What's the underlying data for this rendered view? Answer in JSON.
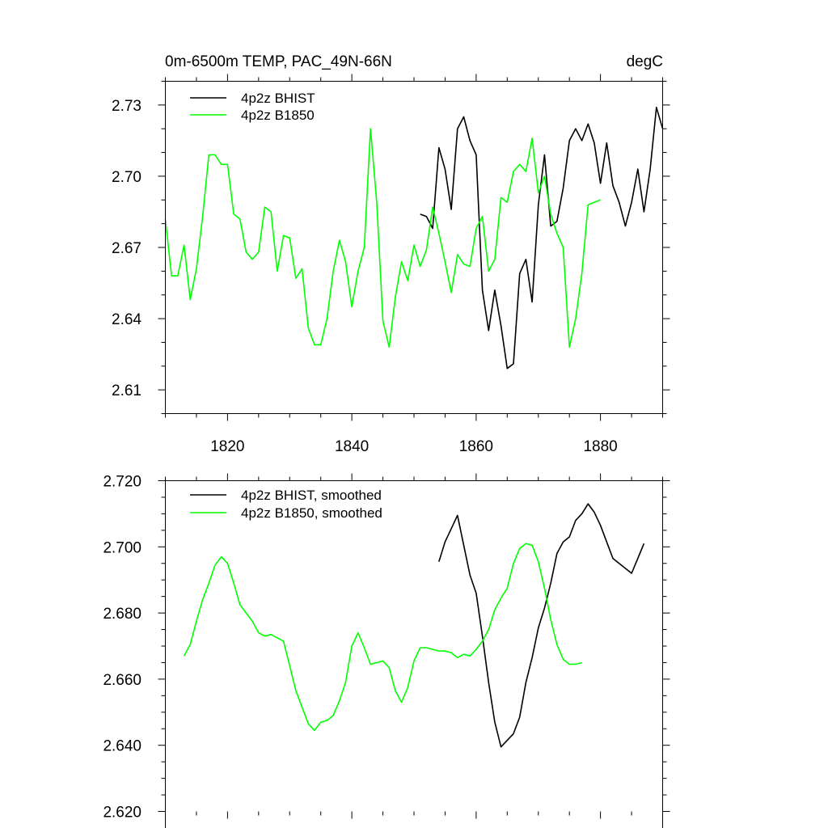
{
  "chart_data": [
    {
      "type": "line",
      "title": "0m-6500m TEMP, PAC_49N-66N",
      "units": "degC",
      "xlim": [
        1810,
        1890
      ],
      "ylim": [
        2.6,
        2.74
      ],
      "x_ticks": [
        1820,
        1840,
        1860,
        1880
      ],
      "x_tick_labels": [
        "1820",
        "1840",
        "1860",
        "1880"
      ],
      "y_ticks": [
        2.61,
        2.64,
        2.67,
        2.7,
        2.73
      ],
      "y_tick_labels": [
        "2.61",
        "2.64",
        "2.67",
        "2.70",
        "2.73"
      ],
      "legend_position": "top-left",
      "series": [
        {
          "name": "4p2z BHIST",
          "color": "#000000",
          "x": [
            1851,
            1852,
            1853,
            1854,
            1855,
            1856,
            1857,
            1858,
            1859,
            1860,
            1861,
            1862,
            1863,
            1864,
            1865,
            1866,
            1867,
            1868,
            1869,
            1870,
            1871,
            1872,
            1873,
            1874,
            1875,
            1876,
            1877,
            1878,
            1879,
            1880,
            1881,
            1882,
            1883,
            1884,
            1885,
            1886,
            1887,
            1888,
            1889,
            1890
          ],
          "y": [
            2.684,
            2.683,
            2.678,
            2.712,
            2.703,
            2.686,
            2.72,
            2.725,
            2.715,
            2.709,
            2.652,
            2.635,
            2.652,
            2.637,
            2.619,
            2.621,
            2.659,
            2.665,
            2.647,
            2.688,
            2.709,
            2.679,
            2.681,
            2.695,
            2.715,
            2.72,
            2.715,
            2.722,
            2.714,
            2.697,
            2.714,
            2.696,
            2.689,
            2.679,
            2.689,
            2.703,
            2.685,
            2.703,
            2.729,
            2.72
          ]
        },
        {
          "name": "4p2z B1850",
          "color": "#00ff00",
          "x": [
            1810,
            1811,
            1812,
            1813,
            1814,
            1815,
            1816,
            1817,
            1818,
            1819,
            1820,
            1821,
            1822,
            1823,
            1824,
            1825,
            1826,
            1827,
            1828,
            1829,
            1830,
            1831,
            1832,
            1833,
            1834,
            1835,
            1836,
            1837,
            1838,
            1839,
            1840,
            1841,
            1842,
            1843,
            1844,
            1845,
            1846,
            1847,
            1848,
            1849,
            1850,
            1851,
            1852,
            1853,
            1854,
            1855,
            1856,
            1857,
            1858,
            1859,
            1860,
            1861,
            1862,
            1863,
            1864,
            1865,
            1866,
            1867,
            1868,
            1869,
            1870,
            1871,
            1872,
            1873,
            1874,
            1875,
            1876,
            1877,
            1878,
            1879,
            1880
          ],
          "y": [
            2.682,
            2.658,
            2.658,
            2.671,
            2.648,
            2.661,
            2.683,
            2.709,
            2.709,
            2.705,
            2.705,
            2.684,
            2.682,
            2.668,
            2.665,
            2.668,
            2.687,
            2.685,
            2.66,
            2.675,
            2.674,
            2.657,
            2.661,
            2.636,
            2.629,
            2.629,
            2.64,
            2.66,
            2.673,
            2.664,
            2.645,
            2.66,
            2.67,
            2.72,
            2.689,
            2.639,
            2.628,
            2.649,
            2.664,
            2.656,
            2.671,
            2.662,
            2.669,
            2.687,
            2.676,
            2.664,
            2.651,
            2.667,
            2.663,
            2.662,
            2.678,
            2.683,
            2.66,
            2.665,
            2.691,
            2.689,
            2.702,
            2.705,
            2.702,
            2.716,
            2.693,
            2.7,
            2.684,
            2.676,
            2.67,
            2.628,
            2.64,
            2.659,
            2.688,
            2.689,
            2.69
          ]
        }
      ]
    },
    {
      "type": "line",
      "title": "",
      "xlim": [
        1810,
        1890
      ],
      "ylim": [
        2.62,
        2.72
      ],
      "x_ticks": [
        1820,
        1840,
        1860,
        1880
      ],
      "x_tick_labels": [],
      "y_ticks": [
        2.62,
        2.64,
        2.66,
        2.68,
        2.7,
        2.72
      ],
      "y_tick_labels": [
        "2.620",
        "2.640",
        "2.660",
        "2.680",
        "2.700",
        "2.720"
      ],
      "legend_position": "top-left",
      "series": [
        {
          "name": "4p2z BHIST, smoothed",
          "color": "#000000",
          "x": [
            1854,
            1855,
            1856,
            1857,
            1858,
            1859,
            1860,
            1861,
            1862,
            1863,
            1864,
            1865,
            1866,
            1867,
            1868,
            1869,
            1870,
            1871,
            1872,
            1873,
            1874,
            1875,
            1876,
            1877,
            1878,
            1879,
            1880,
            1881,
            1882,
            1883,
            1884,
            1885,
            1886,
            1887
          ],
          "y": [
            2.6955,
            2.7015,
            2.7055,
            2.7095,
            2.7005,
            2.6915,
            2.686,
            2.673,
            2.659,
            2.647,
            2.6395,
            2.6415,
            2.6435,
            2.6485,
            2.659,
            2.6665,
            2.6755,
            2.6815,
            2.689,
            2.698,
            2.7015,
            2.703,
            2.708,
            2.71,
            2.713,
            2.7105,
            2.7065,
            2.7015,
            2.6965,
            2.695,
            2.6935,
            2.692,
            2.6965,
            2.701
          ]
        },
        {
          "name": "4p2z B1850, smoothed",
          "color": "#00ff00",
          "x": [
            1813,
            1814,
            1815,
            1816,
            1817,
            1818,
            1819,
            1820,
            1821,
            1822,
            1823,
            1824,
            1825,
            1826,
            1827,
            1828,
            1829,
            1830,
            1831,
            1832,
            1833,
            1834,
            1835,
            1836,
            1837,
            1838,
            1839,
            1840,
            1841,
            1842,
            1843,
            1844,
            1845,
            1846,
            1847,
            1848,
            1849,
            1850,
            1851,
            1852,
            1853,
            1854,
            1855,
            1856,
            1857,
            1858,
            1859,
            1860,
            1861,
            1862,
            1863,
            1864,
            1865,
            1866,
            1867,
            1868,
            1869,
            1870,
            1871,
            1872,
            1873,
            1874,
            1875,
            1876,
            1877
          ],
          "y": [
            2.667,
            2.6705,
            2.6775,
            2.684,
            2.689,
            2.6945,
            2.697,
            2.695,
            2.689,
            2.6825,
            2.68,
            2.6775,
            2.674,
            2.673,
            2.6735,
            2.6725,
            2.6715,
            2.664,
            2.6565,
            2.6515,
            2.6465,
            2.6445,
            2.647,
            2.6475,
            2.649,
            2.6535,
            2.659,
            2.67,
            2.674,
            2.6695,
            2.6645,
            2.665,
            2.6655,
            2.6635,
            2.6565,
            2.653,
            2.6575,
            2.6655,
            2.6695,
            2.6695,
            2.669,
            2.6685,
            2.6685,
            2.668,
            2.6665,
            2.6675,
            2.667,
            2.669,
            2.6715,
            2.675,
            2.681,
            2.6845,
            2.6875,
            2.695,
            2.6995,
            2.701,
            2.7005,
            2.6955,
            2.6875,
            2.678,
            2.6705,
            2.666,
            2.6645,
            2.6645,
            2.665
          ]
        }
      ]
    }
  ]
}
